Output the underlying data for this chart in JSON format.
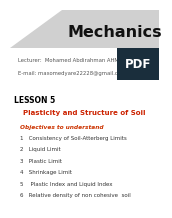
{
  "title": "Mechanics",
  "lecturer_label": "Lecturer:  Mohamed Abdirahman AHMED",
  "email_label": "E-mail: maxomedyare22228@gmail.com",
  "lesson_number": "LESSON 5",
  "lesson_title": "Plasticity and Structure of Soil",
  "objectives_label": "Objectives to understand",
  "objectives": [
    "Consistency of Soil-Atterberg Limits",
    "Liquid Limit",
    "Plastic Limit",
    "Shrinkage Limit",
    " Plastic Index and Liquid Index",
    "Relative density of non cohesive  soil"
  ],
  "bg_color": "#ffffff",
  "title_color": "#111111",
  "lesson_num_color": "#000000",
  "lesson_title_color": "#cc2200",
  "objectives_label_color": "#cc3300",
  "objectives_color": "#333333",
  "lecturer_color": "#555555",
  "pdf_badge_color": "#1a2e3c",
  "header_bg": "#d0d0d0",
  "title_fontsize": 11.5,
  "lecturer_fontsize": 3.8,
  "lesson_num_fontsize": 5.5,
  "lesson_title_fontsize": 5.0,
  "objectives_fontsize": 4.0,
  "objectives_label_fontsize": 4.2,
  "pdf_fontsize": 8.5
}
